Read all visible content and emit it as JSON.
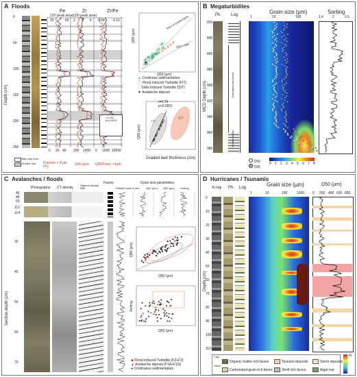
{
  "panels": {
    "a": {
      "letter": "A",
      "title": "Floods",
      "col_fe": "Fe",
      "col_fe_unit": "(10³ peak area)",
      "col_zr": "Zr",
      "col_zr_unit": "(10³ peak area)",
      "col_zrfe": "Zr/Fe",
      "fe_ticks": [
        "20",
        "60"
      ],
      "zr_ticks": [
        "2",
        "4",
        "6"
      ],
      "zrfe_ticks": [
        "0.08",
        "0.16"
      ],
      "depth_label": "Depth (cm)",
      "depth_ticks": [
        "0",
        "50",
        "100",
        "150",
        "200",
        "250"
      ],
      "bottom_ticks_frac": [
        "0",
        "20",
        "40"
      ],
      "bottom_ticks_q90": [
        "100",
        "1000"
      ],
      "bottom_ticks_ratio": [
        "0",
        "1000",
        "10000"
      ],
      "bottom_fraction": "Fraction < 4 µm (%)",
      "bottom_q90": "Q90 (µm)",
      "bottom_ratio": "Q90/Fract. <4µm",
      "legend_silty": "Silty-clay mud",
      "legend_graded": "Graded bed",
      "inset_stats": "r=0.93 p<0.0001",
      "scatter1_ylabel": "Q90 (µm)",
      "scatter1_xlabel": "Q50 (µm)",
      "scatter1_xticks": [
        "0",
        "50",
        "100"
      ],
      "scatter1_yticks": [
        "0",
        "100",
        "200",
        "300"
      ],
      "scatter1_ann1": "base of graded beds",
      "scatter1_ann2": "Q50 = Q90",
      "legend_items": [
        "Continous sedimentation",
        "Flood induced Turbidite (FIT)",
        "Slide Induced Turbidite (SIT)",
        "Avalanche deposit"
      ],
      "scatter2_stats_r": "r=0.79",
      "scatter2_stats_p": "p<0.0001",
      "scatter2_ylabel": "Q90 (µm)",
      "scatter2_xlabel": "Graded bed thickness (cm)",
      "scatter2_xticks": [
        "0",
        "4",
        "8",
        "12"
      ],
      "scatter2_yticks": [
        "100",
        "200"
      ],
      "scatter2_fit": "FIT",
      "scatter2_sit": "SIT"
    },
    "b": {
      "letter": "B",
      "title": "Megaturbidites",
      "col_ph": "Ph.",
      "col_log": "Log",
      "col_gs": "Grain-size (µm)",
      "col_sort": "Sorting",
      "gs_ticks": [
        "1",
        "10",
        "100"
      ],
      "sort_ticks": [
        "1.4",
        "2",
        "2.6"
      ],
      "depth_label": "MCD Depth (cm)",
      "depth_ticks": [
        "820",
        "840",
        "860",
        "880",
        "900",
        "920",
        "940",
        "960",
        "980"
      ],
      "homogenite": "Homogeneous facies",
      "graded": "Graded facies",
      "legend_d50": "D50",
      "legend_d90": "D90",
      "colorbar_ticks": [
        "0",
        "1",
        "2",
        "3",
        "4",
        "5",
        "6",
        "7",
        "8"
      ]
    },
    "c": {
      "letter": "C",
      "title": "Avalanches / floods",
      "col_photo": "Photography",
      "col_ct": "CT density",
      "col_hd": "Highest density filter",
      "col_facies": "Facies",
      "col_gs": "Grain size parameters",
      "sub_pebble": "Pebble count 6 mm",
      "sub_q50": "Q50 (µm)",
      "sub_q90": "Q90 (µm)",
      "sub_sort": "Sorting",
      "top_ticks_a": [
        "46",
        "48",
        "50"
      ],
      "top_ticks_b": [
        "112",
        "114"
      ],
      "depth_label": "Section depth (cm)",
      "depth_ticks": [
        "30",
        "40",
        "50",
        "60",
        "70"
      ],
      "inner1_ylabel": "Q90 (µm)",
      "inner1_xlabel": "Q50 (µm)",
      "inner1_xticks": [
        "0",
        "40",
        "80",
        "120",
        "160"
      ],
      "inner1_yticks": [
        "0",
        "100",
        "200",
        "300"
      ],
      "inner2_ylabel": "Sorting",
      "inner2_xlabel": "Q50 (µm)",
      "inner2_xticks": [
        "0",
        "40",
        "80",
        "120",
        "160"
      ],
      "inner2_yticks": [
        "1",
        "2",
        "3",
        "4"
      ],
      "legend_items": [
        "Flood induced Turbidite (F2+F3)",
        "Avalanche deposit (F1A+F1G)",
        "Continuous sedimentation"
      ]
    },
    "d": {
      "letter": "D",
      "title": "Hurricanes / Tsunamis",
      "col_xray": "X-ray",
      "col_ph": "Ph.",
      "col_log": "Log",
      "col_gs": "Grain size (µm)",
      "col_d50": "D50 (µm)",
      "gs_ticks": [
        "1",
        "10",
        "100",
        "1000"
      ],
      "d50_ticks": [
        "0",
        "200",
        "400",
        "600",
        "800"
      ],
      "depth_label": "Depth (cm)",
      "depth_ticks": [
        "0",
        "10",
        "20",
        "30",
        "40",
        "50",
        "60",
        "70",
        "80",
        "90",
        "100",
        "110"
      ],
      "colorbar_label": "%",
      "legend": [
        "Organic matter-rich facies",
        "Tsunami deposits",
        "Storm deposits",
        "Carbonated grain-rich facies",
        "Shell-rich facies",
        "Algal mat"
      ],
      "legend_hdr1": "Clay",
      "legend_hdr2": "Sand"
    }
  },
  "colors": {
    "fit_green": "#3aa36a",
    "sit_orange": "#f3a58a",
    "av_black": "#222222",
    "profile_red": "#c0392b",
    "tsunami_pink": "#f4a3a3",
    "storm_tan": "#f3d7a6"
  }
}
